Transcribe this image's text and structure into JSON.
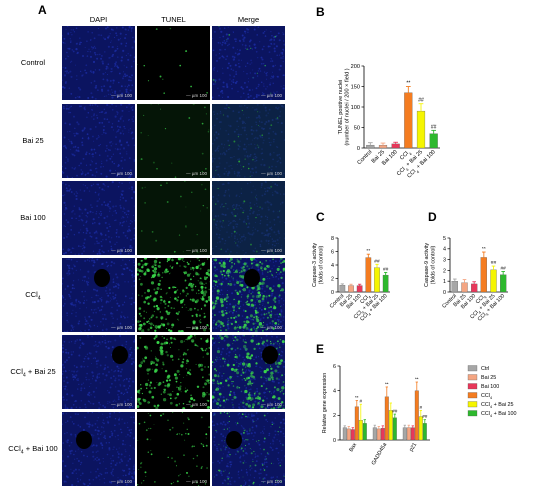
{
  "figure": {
    "panel_letters": [
      "A",
      "B",
      "C",
      "D",
      "E"
    ],
    "micrograph": {
      "columns": [
        "DAPI",
        "TUNEL",
        "Merge"
      ],
      "rows": [
        "Control",
        "Bai 25",
        "Bai 100",
        "CCl4",
        "CCl4 + Bai 25",
        "CCl4 + Bai 100"
      ],
      "scale_label": "— µm 100",
      "colors": {
        "dapi": "#1a2a9c",
        "tunel": "#39d64a",
        "background": "#000000"
      }
    }
  },
  "chart_data": [
    {
      "id": "B",
      "type": "bar",
      "categories": [
        "Control",
        "Bai 25",
        "Bai 100",
        "CCl4",
        "CCl4 + Bai 25",
        "CCl4 + Bai 100"
      ],
      "values": [
        7,
        7,
        10,
        135,
        90,
        35
      ],
      "errors": [
        6,
        5,
        4,
        15,
        18,
        8
      ],
      "colors": [
        "#a6a6a6",
        "#f4a582",
        "#e8375a",
        "#f47c20",
        "#f5f500",
        "#2db82d"
      ],
      "annotations": [
        "",
        "",
        "",
        "**",
        "##",
        "##"
      ],
      "ylabel": "TUNEL positive nuclei",
      "ylabel2": "(number of nuclei / 200 × field )",
      "ylim": [
        0,
        200
      ],
      "yticks": [
        0,
        50,
        100,
        150,
        200
      ]
    },
    {
      "id": "C",
      "type": "bar",
      "categories": [
        "Control",
        "Bai 25",
        "Bai 100",
        "CCl4",
        "CCl4 + Bai 25",
        "CCl4 + Bai 100"
      ],
      "values": [
        1.0,
        0.95,
        0.95,
        5.1,
        3.6,
        2.5
      ],
      "errors": [
        0.2,
        0.2,
        0.2,
        0.5,
        0.5,
        0.4
      ],
      "colors": [
        "#a6a6a6",
        "#f4a582",
        "#e8375a",
        "#f47c20",
        "#f5f500",
        "#2db82d"
      ],
      "annotations": [
        "",
        "",
        "",
        "**",
        "##",
        "##"
      ],
      "ylabel": "Caspase-3 activity",
      "ylabel2": "(folds of control)",
      "ylim": [
        0,
        8
      ],
      "yticks": [
        0,
        2,
        4,
        6,
        8
      ]
    },
    {
      "id": "D",
      "type": "bar",
      "categories": [
        "Control",
        "Bai 25",
        "Bai 100",
        "CCl4",
        "CCl4 + Bai 25",
        "CCl4 + Bai 100"
      ],
      "values": [
        1.0,
        0.85,
        0.75,
        3.2,
        2.05,
        1.6
      ],
      "errors": [
        0.2,
        0.3,
        0.2,
        0.5,
        0.35,
        0.3
      ],
      "colors": [
        "#a6a6a6",
        "#f4a582",
        "#e8375a",
        "#f47c20",
        "#f5f500",
        "#2db82d"
      ],
      "annotations": [
        "",
        "",
        "",
        "**",
        "##",
        "##"
      ],
      "ylabel": "Caspase-9 activity",
      "ylabel2": "(folds of control)",
      "ylim": [
        0,
        5
      ],
      "yticks": [
        0,
        1,
        2,
        3,
        4,
        5
      ]
    },
    {
      "id": "E",
      "type": "bar",
      "categories": [
        "Bax",
        "GADD45a",
        "p21"
      ],
      "series": [
        {
          "name": "Ctrl",
          "values": [
            1.0,
            1.0,
            1.0
          ],
          "errors": [
            0.15,
            0.2,
            0.2
          ],
          "color": "#a6a6a6"
        },
        {
          "name": "Bai 25",
          "values": [
            0.9,
            0.9,
            1.0
          ],
          "errors": [
            0.2,
            0.2,
            0.2
          ],
          "color": "#f4a582"
        },
        {
          "name": "Bai 100",
          "values": [
            0.85,
            0.95,
            1.0
          ],
          "errors": [
            0.15,
            0.2,
            0.15
          ],
          "color": "#e8375a"
        },
        {
          "name": "CCl4",
          "values": [
            2.7,
            3.5,
            4.0
          ],
          "errors": [
            0.5,
            0.8,
            0.7
          ],
          "color": "#f47c20"
        },
        {
          "name": "CCl4 + Bai 25",
          "values": [
            1.6,
            2.4,
            1.9
          ],
          "errors": [
            1.3,
            0.6,
            0.5
          ],
          "color": "#f5f500"
        },
        {
          "name": "CCl4 + Bai 100",
          "values": [
            1.35,
            1.8,
            1.35
          ],
          "errors": [
            0.3,
            0.3,
            0.3
          ],
          "color": "#2db82d"
        }
      ],
      "annotations": [
        [
          "",
          "",
          "",
          "**",
          "#",
          ""
        ],
        [
          "",
          "",
          "",
          "**",
          "",
          "##"
        ],
        [
          "",
          "",
          "",
          "**",
          "#",
          "##"
        ]
      ],
      "ylabel": "Relative gene expression",
      "ylim": [
        0,
        6
      ],
      "yticks": [
        0,
        2,
        4,
        6
      ],
      "legend": "right"
    }
  ]
}
